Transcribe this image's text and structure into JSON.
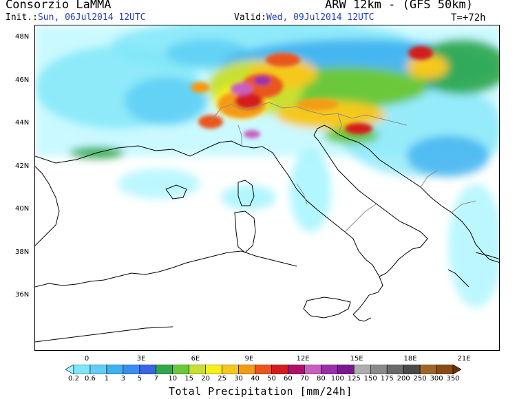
{
  "header": {
    "organization": "Consorzio LaMMA",
    "model": "ARW 12km - (GFS 50km)",
    "init_label": "Init.:",
    "init_value": "Sun, 06Jul2014 12UTC",
    "valid_label": "Valid:",
    "valid_value": "Wed, 09Jul2014 12UTC",
    "lead_time": "T=+72h"
  },
  "map": {
    "lat_labels": [
      "48N",
      "46N",
      "44N",
      "42N",
      "40N",
      "38N",
      "36N"
    ],
    "lon_labels": [
      "0",
      "3E",
      "6E",
      "9E",
      "12E",
      "15E",
      "18E",
      "21E"
    ],
    "colors": {
      "coast": "#000000",
      "border": "#8c8c8c",
      "ocean": "#ffffff"
    }
  },
  "colorbar": {
    "title": "Total Precipitation [mm/24h]",
    "ticks": [
      "0.2",
      "0.6",
      "1",
      "3",
      "5",
      "7",
      "10",
      "15",
      "20",
      "25",
      "30",
      "40",
      "50",
      "60",
      "70",
      "80",
      "100",
      "125",
      "150",
      "175",
      "200",
      "250",
      "300",
      "350"
    ],
    "colors": [
      "#9ff4ff",
      "#7fe6f8",
      "#5fcff5",
      "#3fb0f0",
      "#3c8df0",
      "#3b64e6",
      "#2fa84a",
      "#6cc83a",
      "#c8e030",
      "#f5f01c",
      "#f5c81c",
      "#f59a14",
      "#e9561c",
      "#d41c1c",
      "#b0106a",
      "#c860c0",
      "#9a30a8",
      "#7a1890",
      "#aeaeae",
      "#8a8a8a",
      "#6a6a6a",
      "#4a4a4a",
      "#a06428",
      "#8a4a14",
      "#6a3008"
    ]
  }
}
